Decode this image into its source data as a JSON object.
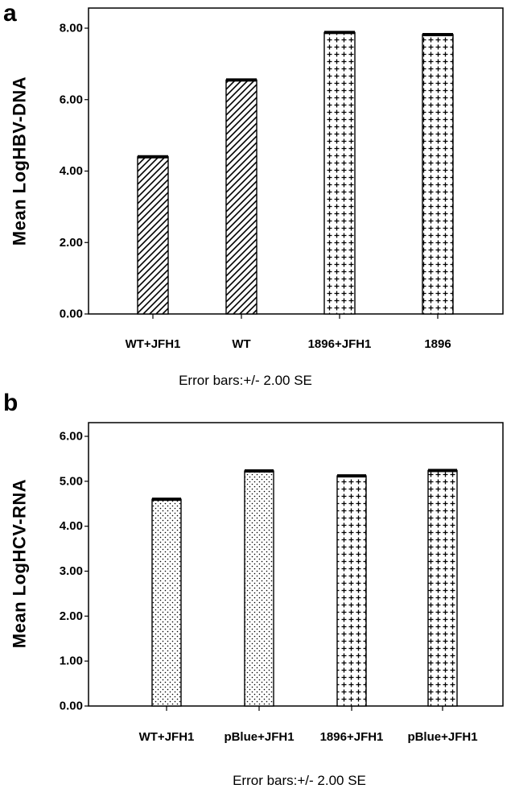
{
  "chart_data": [
    {
      "panel": "a",
      "type": "bar",
      "ylabel": "Mean LogHBV-DNA",
      "note": "Error bars:+/- 2.00 SE",
      "categories": [
        "WT+JFH1",
        "WT",
        "1896+JFH1",
        "1896"
      ],
      "values": [
        4.4,
        6.55,
        7.88,
        7.82
      ],
      "patterns": [
        "hatch",
        "hatch",
        "cross",
        "cross"
      ],
      "yticks": [
        "0.00",
        "2.00",
        "4.00",
        "6.00",
        "8.00"
      ],
      "ylim": [
        0,
        8.2
      ],
      "grid": false
    },
    {
      "panel": "b",
      "type": "bar",
      "ylabel": "Mean LogHCV-RNA",
      "note": "Error bars:+/- 2.00 SE",
      "categories": [
        "WT+JFH1",
        "pBlue+JFH1",
        "1896+JFH1",
        "pBlue+JFH1"
      ],
      "values": [
        4.6,
        5.23,
        5.12,
        5.24
      ],
      "patterns": [
        "dots",
        "dots",
        "cross",
        "cross"
      ],
      "yticks": [
        "0.00",
        "1.00",
        "2.00",
        "3.00",
        "4.00",
        "5.00",
        "6.00"
      ],
      "ylim": [
        0,
        6.2
      ],
      "grid": false
    }
  ]
}
